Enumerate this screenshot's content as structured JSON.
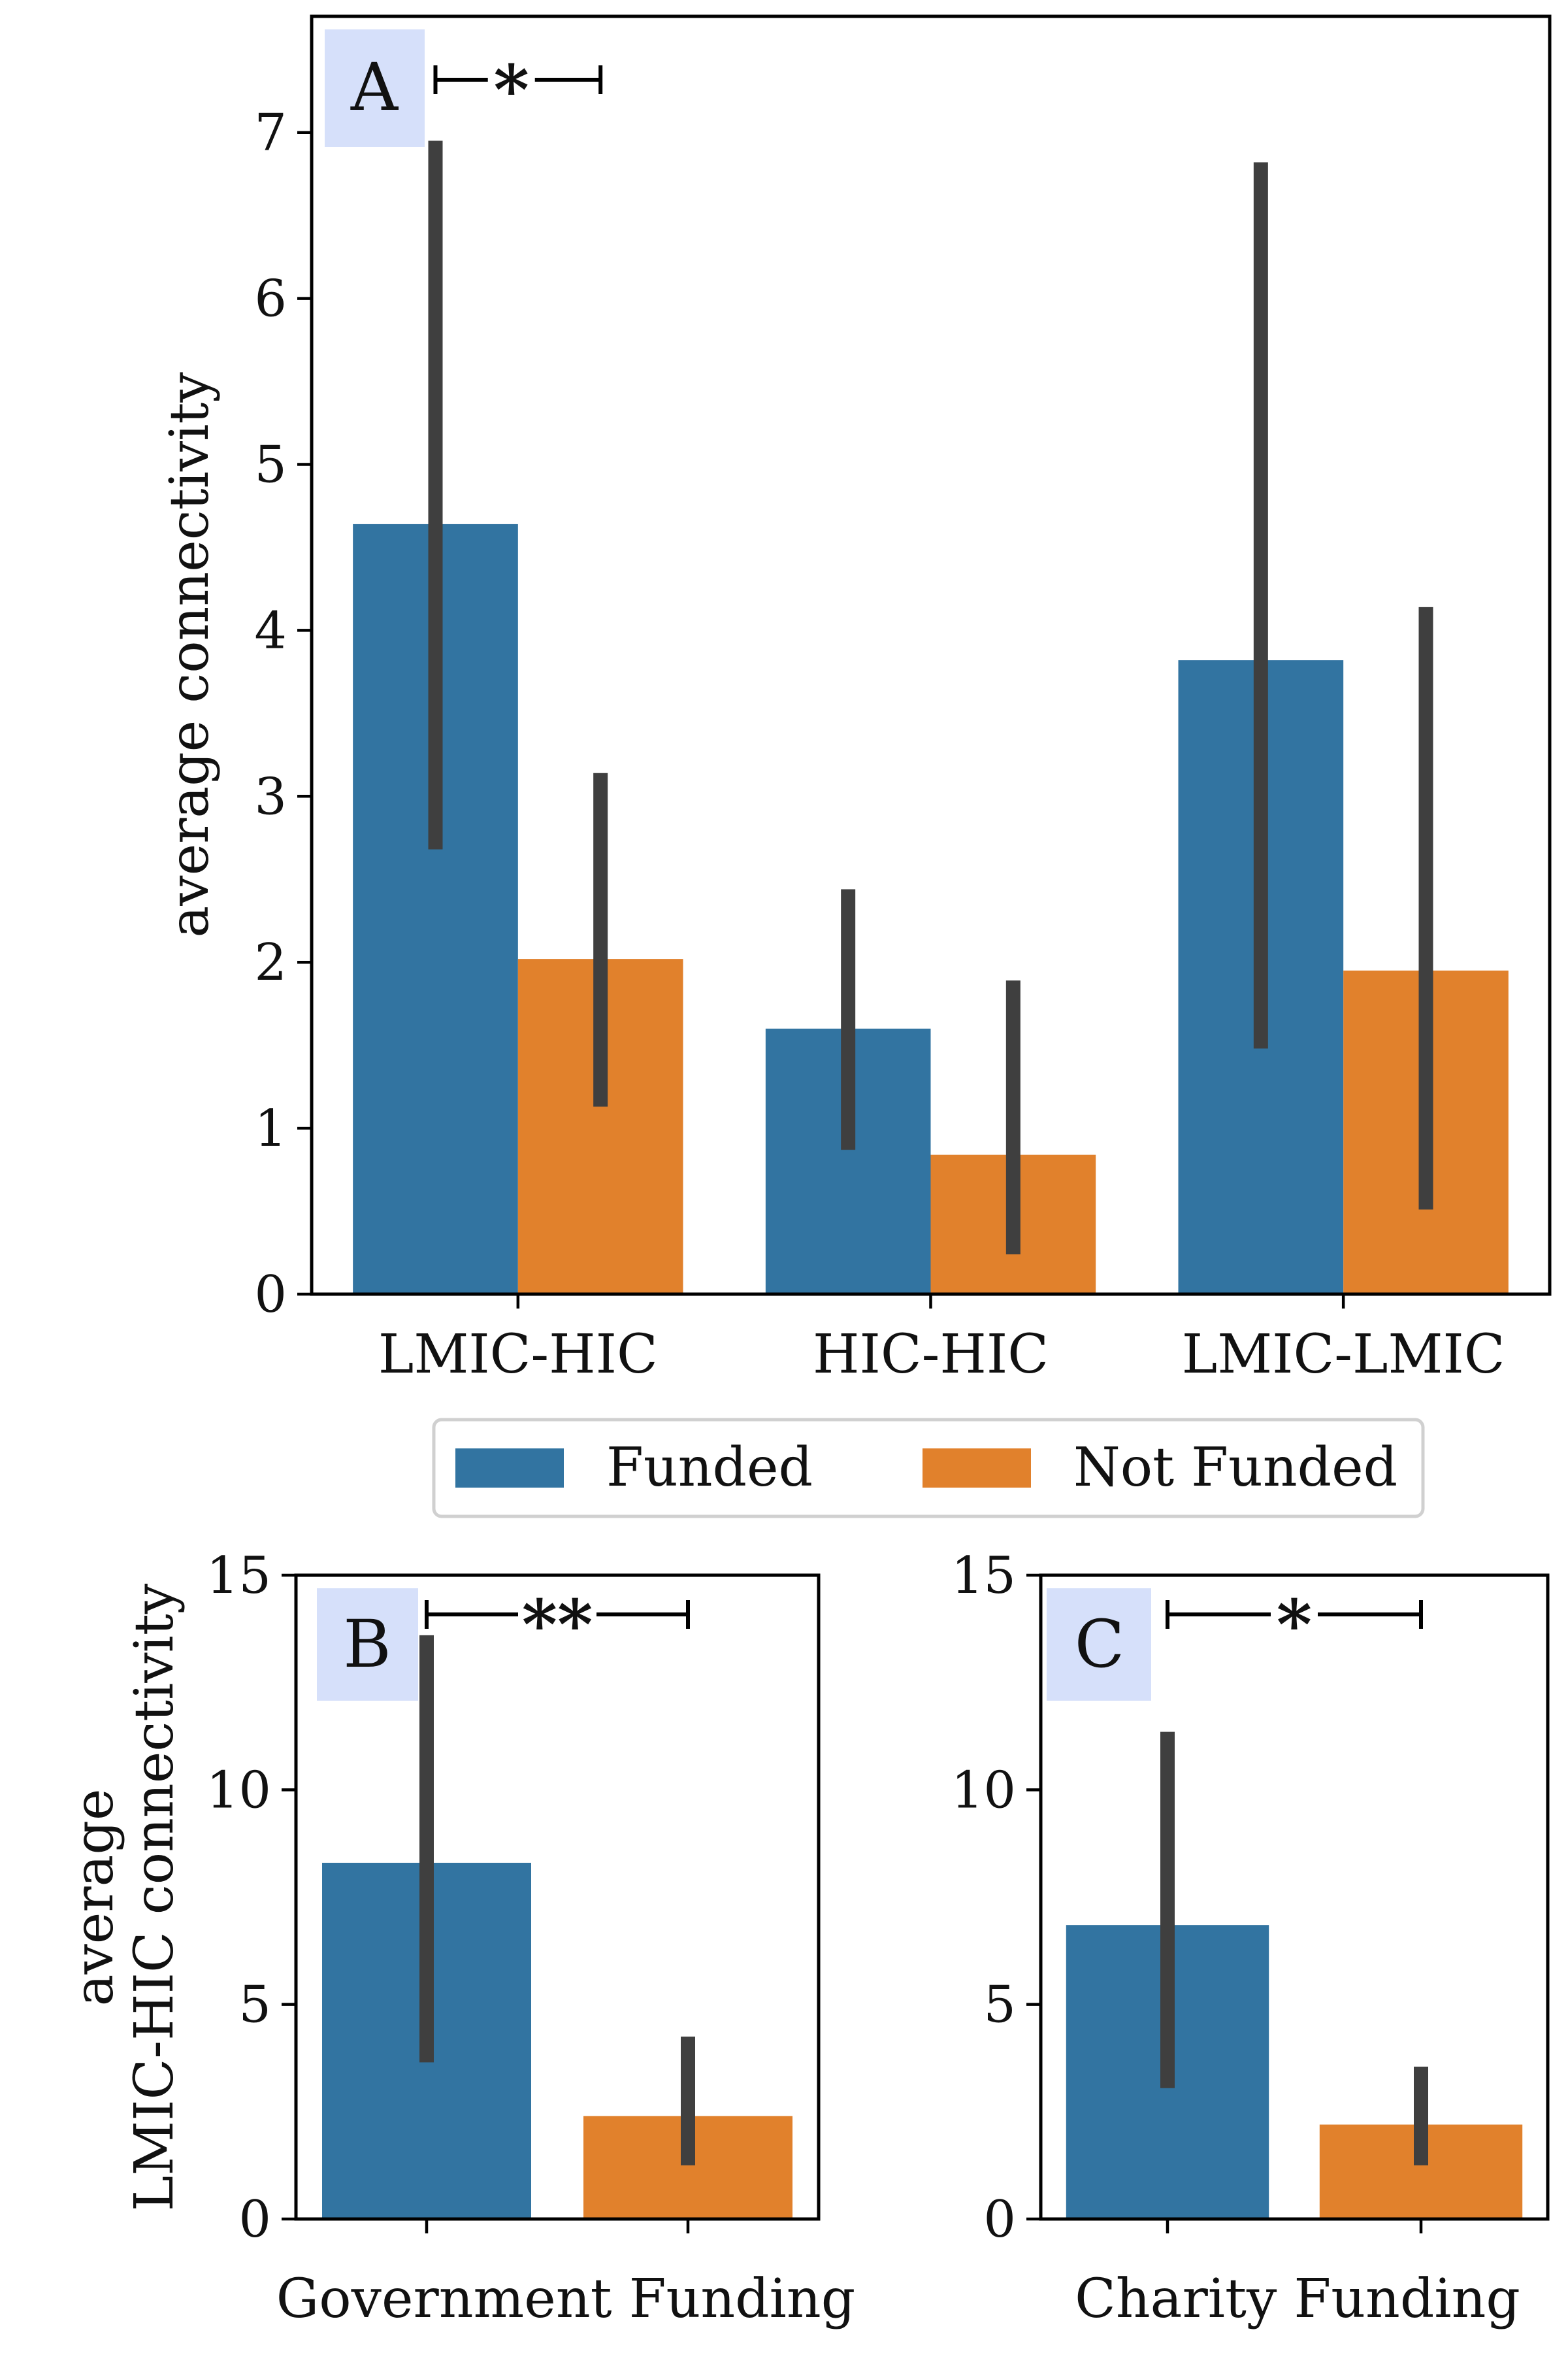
{
  "colors": {
    "funded": "#3274a1",
    "not_funded": "#e1812c",
    "error_bar": "#3f3f3f",
    "label_box": "#d6e0fa"
  },
  "legend": {
    "placement": "between panels, centered",
    "items": [
      "Funded",
      "Not Funded"
    ]
  },
  "chart_data": [
    {
      "panel": "A",
      "type": "bar",
      "title": "",
      "xlabel": "",
      "ylabel": "average connectivity",
      "ylim": [
        0,
        7.7
      ],
      "yticks": [
        0,
        1,
        2,
        3,
        4,
        5,
        6,
        7
      ],
      "categories": [
        "LMIC-HIC",
        "HIC-HIC",
        "LMIC-LMIC"
      ],
      "series": [
        {
          "name": "Funded",
          "values": [
            4.64,
            1.6,
            3.82
          ],
          "ci_low": [
            2.68,
            0.87,
            1.48
          ],
          "ci_high": [
            6.95,
            2.44,
            6.82
          ]
        },
        {
          "name": "Not Funded",
          "values": [
            2.02,
            0.84,
            1.95
          ],
          "ci_low": [
            1.13,
            0.24,
            0.51
          ],
          "ci_high": [
            3.14,
            1.89,
            4.14
          ]
        }
      ],
      "significance": [
        {
          "category": "LMIC-HIC",
          "label": "*"
        }
      ],
      "grid": false
    },
    {
      "panel": "B",
      "type": "bar",
      "title": "",
      "xlabel": "Government Funding",
      "ylabel": "average\nLMIC-HIC connectivity",
      "ylim": [
        0,
        15
      ],
      "yticks": [
        0,
        5,
        10,
        15
      ],
      "categories": [
        "Funded",
        "Not Funded"
      ],
      "values": [
        8.3,
        2.4
      ],
      "ci_low": [
        3.65,
        1.25
      ],
      "ci_high": [
        13.6,
        4.25
      ],
      "significance": [
        {
          "label": "**"
        }
      ],
      "grid": false
    },
    {
      "panel": "C",
      "type": "bar",
      "title": "",
      "xlabel": "Charity Funding",
      "ylabel": "",
      "ylim": [
        0,
        15
      ],
      "yticks": [
        0,
        5,
        10,
        15
      ],
      "categories": [
        "Funded",
        "Not Funded"
      ],
      "values": [
        6.85,
        2.2
      ],
      "ci_low": [
        3.05,
        1.25
      ],
      "ci_high": [
        11.35,
        3.55
      ],
      "significance": [
        {
          "label": "*"
        }
      ],
      "grid": false
    }
  ]
}
